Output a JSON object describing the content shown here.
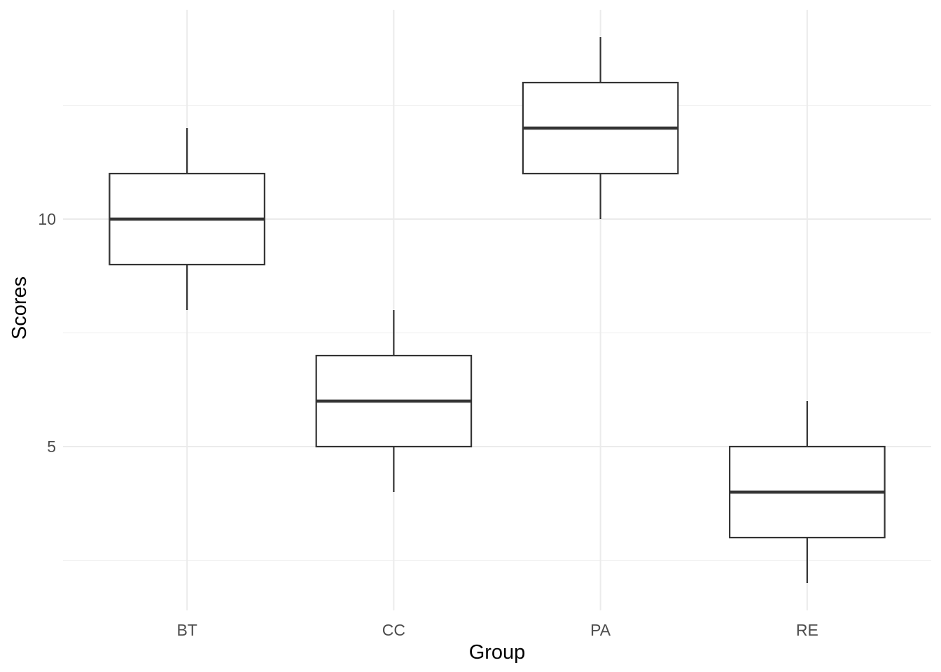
{
  "figure": {
    "background": "#FFFFFF"
  },
  "chart_data": {
    "type": "boxplot",
    "title": "",
    "xlabel": "Group",
    "ylabel": "Scores",
    "categories": [
      "BT",
      "CC",
      "PA",
      "RE"
    ],
    "series": [
      {
        "name": "BT",
        "min": 8,
        "q1": 9,
        "median": 10,
        "q3": 11,
        "max": 12
      },
      {
        "name": "CC",
        "min": 4,
        "q1": 5,
        "median": 6,
        "q3": 7,
        "max": 8
      },
      {
        "name": "PA",
        "min": 10,
        "q1": 11,
        "median": 12,
        "q3": 13,
        "max": 14
      },
      {
        "name": "RE",
        "min": 2,
        "q1": 3,
        "median": 4,
        "q3": 5,
        "max": 6
      }
    ],
    "outliers": [],
    "ylim": [
      1.4,
      14.6
    ],
    "y_major_ticks": [
      5,
      10
    ],
    "y_tick_labels": [
      "5",
      "10"
    ],
    "y_minor_gridlines": [
      2.5,
      7.5,
      12.5
    ],
    "grid": "horizontal major+minor, vertical major per category",
    "legend": "none",
    "box_width_fraction": 0.75,
    "colors": {
      "box_stroke": "#333333",
      "box_fill": "#FFFFFF",
      "median_stroke": "#333333",
      "grid_major": "#EBEBEB",
      "grid_minor": "#F1F1F1",
      "tick_label": "#4D4D4D",
      "axis_title": "#000000",
      "background": "#FFFFFF"
    }
  }
}
